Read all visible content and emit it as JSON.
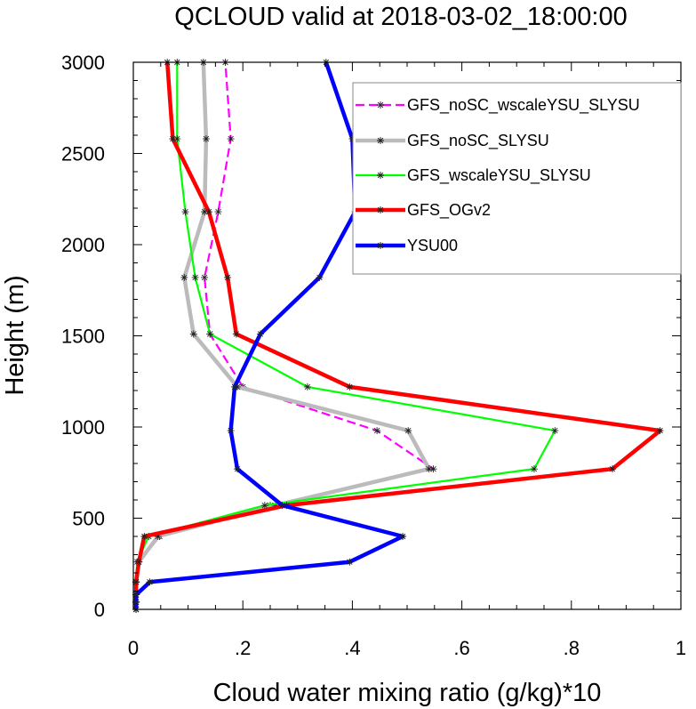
{
  "chart_data": {
    "type": "line",
    "title": "QCLOUD valid at 2018-03-02_18:00:00",
    "xlabel": "Cloud water mixing ratio (g/kg)*10",
    "ylabel": "Height (m)",
    "xlim": [
      0,
      1
    ],
    "ylim": [
      0,
      3000
    ],
    "xticks": [
      0,
      0.2,
      0.4,
      0.6,
      0.8,
      1
    ],
    "xtick_labels": [
      "0",
      ".2",
      ".4",
      ".6",
      ".8",
      "1"
    ],
    "yticks": [
      0,
      500,
      1000,
      1500,
      2000,
      2500,
      3000
    ],
    "ytick_labels": [
      "0",
      "500",
      "1000",
      "1500",
      "2000",
      "2500",
      "3000"
    ],
    "grid": false,
    "legend_position": "top-right",
    "marker": "asterisk",
    "series": [
      {
        "name": "GFS_noSC_wscaleYSU_SLYSU",
        "color": "#ff00ff",
        "dash": true,
        "width": "thin",
        "points": [
          [
            0.005,
            0
          ],
          [
            0.005,
            40
          ],
          [
            0.005,
            80
          ],
          [
            0.005,
            150
          ],
          [
            0.01,
            260
          ],
          [
            0.048,
            400
          ],
          [
            0.25,
            570
          ],
          [
            0.548,
            770
          ],
          [
            0.445,
            980
          ],
          [
            0.2,
            1220
          ],
          [
            0.14,
            1510
          ],
          [
            0.13,
            1820
          ],
          [
            0.155,
            2180
          ],
          [
            0.178,
            2580
          ],
          [
            0.168,
            3000
          ]
        ]
      },
      {
        "name": "GFS_noSC_SLYSU",
        "color": "#bbbbbb",
        "dash": false,
        "width": "thick",
        "points": [
          [
            0.005,
            0
          ],
          [
            0.005,
            40
          ],
          [
            0.005,
            80
          ],
          [
            0.005,
            150
          ],
          [
            0.01,
            260
          ],
          [
            0.045,
            400
          ],
          [
            0.26,
            570
          ],
          [
            0.54,
            770
          ],
          [
            0.502,
            980
          ],
          [
            0.19,
            1220
          ],
          [
            0.11,
            1510
          ],
          [
            0.093,
            1820
          ],
          [
            0.13,
            2180
          ],
          [
            0.133,
            2580
          ],
          [
            0.128,
            3000
          ]
        ]
      },
      {
        "name": "GFS_wscaleYSU_SLYSU",
        "color": "#00ff00",
        "dash": false,
        "width": "thin",
        "points": [
          [
            0.005,
            0
          ],
          [
            0.005,
            40
          ],
          [
            0.005,
            80
          ],
          [
            0.005,
            150
          ],
          [
            0.007,
            260
          ],
          [
            0.028,
            400
          ],
          [
            0.24,
            570
          ],
          [
            0.732,
            770
          ],
          [
            0.77,
            980
          ],
          [
            0.318,
            1220
          ],
          [
            0.14,
            1510
          ],
          [
            0.113,
            1820
          ],
          [
            0.095,
            2180
          ],
          [
            0.08,
            2580
          ],
          [
            0.08,
            3000
          ]
        ]
      },
      {
        "name": "GFS_OGv2",
        "color": "#ff0000",
        "dash": false,
        "width": "thick",
        "points": [
          [
            0.005,
            0
          ],
          [
            0.005,
            40
          ],
          [
            0.005,
            80
          ],
          [
            0.005,
            150
          ],
          [
            0.01,
            260
          ],
          [
            0.02,
            400
          ],
          [
            0.28,
            570
          ],
          [
            0.875,
            770
          ],
          [
            0.962,
            980
          ],
          [
            0.395,
            1220
          ],
          [
            0.188,
            1510
          ],
          [
            0.172,
            1820
          ],
          [
            0.138,
            2180
          ],
          [
            0.072,
            2580
          ],
          [
            0.062,
            3000
          ]
        ]
      },
      {
        "name": "YSU00",
        "color": "#0000ff",
        "dash": false,
        "width": "thick",
        "points": [
          [
            0.005,
            0
          ],
          [
            0.005,
            40
          ],
          [
            0.005,
            80
          ],
          [
            0.03,
            150
          ],
          [
            0.395,
            260
          ],
          [
            0.492,
            400
          ],
          [
            0.272,
            570
          ],
          [
            0.19,
            770
          ],
          [
            0.178,
            980
          ],
          [
            0.185,
            1220
          ],
          [
            0.232,
            1510
          ],
          [
            0.34,
            1820
          ],
          [
            0.405,
            2180
          ],
          [
            0.4,
            2580
          ],
          [
            0.352,
            3000
          ]
        ]
      }
    ]
  }
}
